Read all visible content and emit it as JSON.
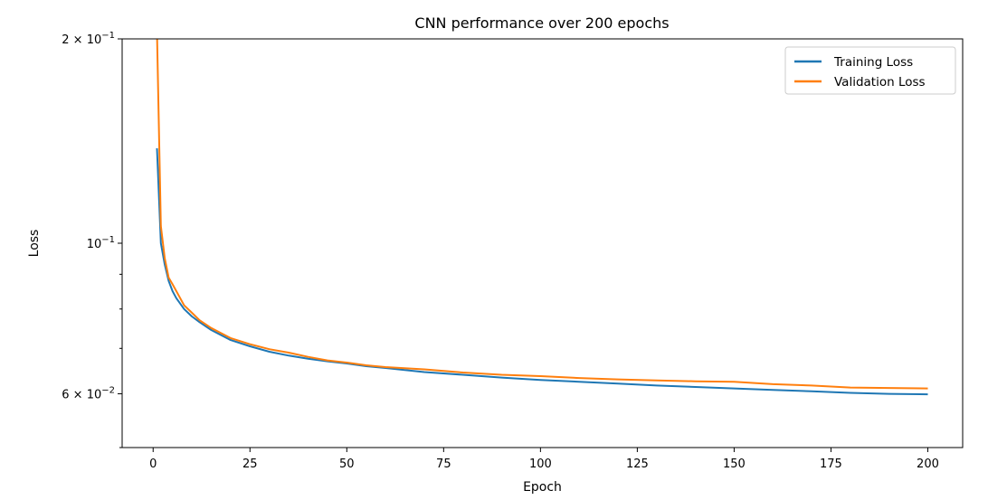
{
  "chart_data": {
    "type": "line",
    "title": "CNN performance over 200 epochs",
    "xlabel": "Epoch",
    "ylabel": "Loss",
    "xlim": [
      -8,
      209
    ],
    "ylim": [
      0.05,
      0.2
    ],
    "y_scale": "log",
    "grid": false,
    "legend_position": "top-right",
    "x_ticks": [
      0,
      25,
      50,
      75,
      100,
      125,
      150,
      175,
      200
    ],
    "y_ticks": [
      {
        "value": 0.2,
        "label": "2 × 10",
        "exp": "−1"
      },
      {
        "value": 0.1,
        "label": "10",
        "exp": "−1"
      },
      {
        "value": 0.06,
        "label": "6 × 10",
        "exp": "−2"
      }
    ],
    "x": [
      1,
      2,
      3,
      4,
      5,
      6,
      8,
      10,
      12,
      15,
      20,
      25,
      30,
      35,
      40,
      45,
      50,
      55,
      60,
      70,
      80,
      90,
      100,
      110,
      120,
      130,
      140,
      150,
      160,
      170,
      180,
      190,
      200
    ],
    "series": [
      {
        "name": "Training Loss",
        "color": "#1f77b4",
        "values": [
          0.138,
          0.1,
          0.093,
          0.088,
          0.085,
          0.083,
          0.08,
          0.078,
          0.0765,
          0.0745,
          0.072,
          0.0705,
          0.0692,
          0.0683,
          0.0676,
          0.067,
          0.0665,
          0.0659,
          0.0655,
          0.0646,
          0.064,
          0.0634,
          0.0629,
          0.0625,
          0.0621,
          0.0617,
          0.0614,
          0.0611,
          0.0608,
          0.0605,
          0.0602,
          0.06,
          0.0599
        ]
      },
      {
        "name": "Validation Loss",
        "color": "#ff7f0e",
        "values": [
          0.205,
          0.106,
          0.095,
          0.089,
          0.087,
          0.085,
          0.081,
          0.079,
          0.077,
          0.075,
          0.0725,
          0.071,
          0.0698,
          0.069,
          0.068,
          0.0672,
          0.0667,
          0.0661,
          0.0657,
          0.0652,
          0.0645,
          0.064,
          0.0637,
          0.0633,
          0.063,
          0.0628,
          0.0626,
          0.0625,
          0.062,
          0.0617,
          0.0613,
          0.0612,
          0.0611
        ]
      }
    ]
  }
}
